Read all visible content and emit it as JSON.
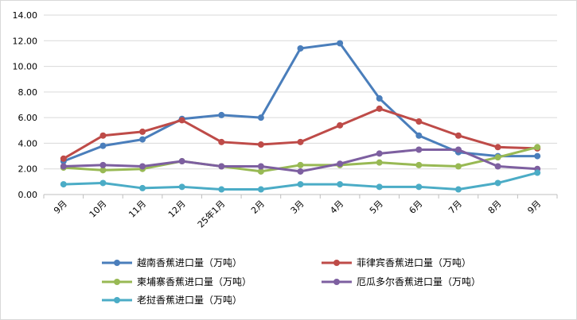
{
  "chart_data": {
    "type": "line",
    "title": "",
    "xlabel": "",
    "ylabel": "",
    "categories": [
      "9月",
      "10月",
      "11月",
      "12月",
      "25年1月",
      "2月",
      "3月",
      "4月",
      "5月",
      "6月",
      "7月",
      "8月",
      "9月"
    ],
    "ylim": [
      0,
      14
    ],
    "yticks": [
      "0.00",
      "2.00",
      "4.00",
      "6.00",
      "8.00",
      "10.00",
      "12.00",
      "14.00"
    ],
    "grid": true,
    "legend_position": "bottom",
    "series": [
      {
        "name": "越南香蕉进口量（万吨）",
        "color": "#4a7ebb",
        "values": [
          2.6,
          3.8,
          4.3,
          5.9,
          6.2,
          6.0,
          11.4,
          11.8,
          7.5,
          4.6,
          3.3,
          3.0,
          3.0
        ]
      },
      {
        "name": "菲律宾香蕉进口量（万吨）",
        "color": "#be4b48",
        "values": [
          2.8,
          4.6,
          4.9,
          5.8,
          4.1,
          3.9,
          4.1,
          5.4,
          6.7,
          5.7,
          4.6,
          3.7,
          3.6
        ]
      },
      {
        "name": "柬埔寨香蕉进口量（万吨）",
        "color": "#98b954",
        "values": [
          2.1,
          1.9,
          2.0,
          2.6,
          2.2,
          1.8,
          2.3,
          2.3,
          2.5,
          2.3,
          2.2,
          2.9,
          3.7
        ]
      },
      {
        "name": "厄瓜多尔香蕉进口量（万吨）",
        "color": "#7d5fa0",
        "values": [
          2.2,
          2.3,
          2.2,
          2.6,
          2.2,
          2.2,
          1.8,
          2.4,
          3.2,
          3.5,
          3.5,
          2.2,
          2.0
        ]
      },
      {
        "name": "老挝香蕉进口量（万吨）",
        "color": "#4bacc6",
        "values": [
          0.8,
          0.9,
          0.5,
          0.6,
          0.4,
          0.4,
          0.8,
          0.8,
          0.6,
          0.6,
          0.4,
          0.9,
          1.7
        ]
      }
    ]
  }
}
